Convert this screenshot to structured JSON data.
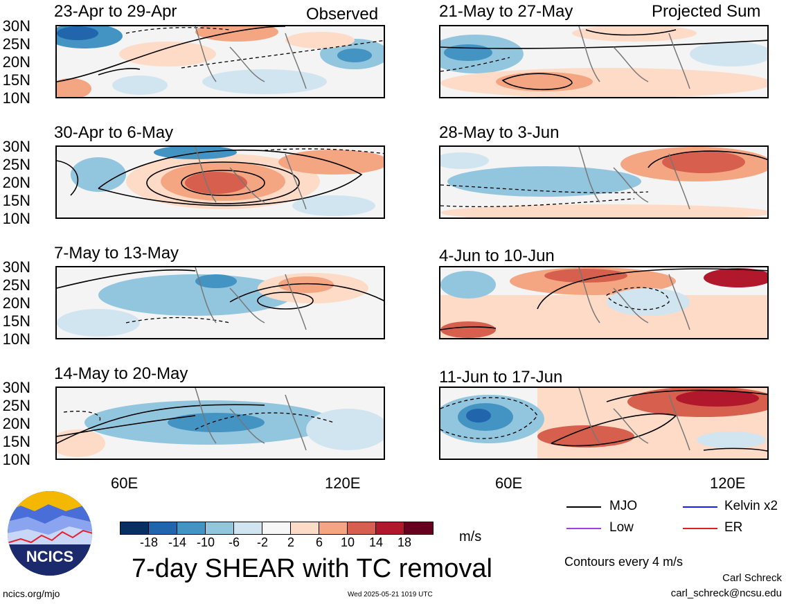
{
  "panels": [
    {
      "id": "p1",
      "title": "23-Apr to 29-Apr",
      "tag": "Observed"
    },
    {
      "id": "p2",
      "title": "21-May to 27-May",
      "tag": "Projected Sum"
    },
    {
      "id": "p3",
      "title": "30-Apr to 6-May",
      "tag": ""
    },
    {
      "id": "p4",
      "title": "28-May to 3-Jun",
      "tag": ""
    },
    {
      "id": "p5",
      "title": "7-May to 13-May",
      "tag": ""
    },
    {
      "id": "p6",
      "title": "4-Jun to 10-Jun",
      "tag": ""
    },
    {
      "id": "p7",
      "title": "14-May to 20-May",
      "tag": ""
    },
    {
      "id": "p8",
      "title": "11-Jun to 17-Jun",
      "tag": ""
    }
  ],
  "lat_labels": [
    "30N",
    "25N",
    "20N",
    "15N",
    "10N"
  ],
  "lon_labels": [
    "60E",
    "120E"
  ],
  "colorbar": {
    "colors": [
      "#053061",
      "#2166ac",
      "#4393c3",
      "#92c5de",
      "#d1e5f0",
      "#f7f7f7",
      "#fddbc7",
      "#f4a582",
      "#d6604d",
      "#b2182b",
      "#67001f"
    ],
    "ticks": [
      "-18",
      "-14",
      "-10",
      "-6",
      "-2",
      "2",
      "6",
      "10",
      "14",
      "18"
    ],
    "units": "m/s"
  },
  "main_title": "7-day SHEAR with TC removal",
  "legend": [
    {
      "label": "MJO",
      "color": "#000000"
    },
    {
      "label": "Kelvin x2",
      "color": "#1a1aff"
    },
    {
      "label": "Low",
      "color": "#a040e0"
    },
    {
      "label": "ER",
      "color": "#e02020"
    }
  ],
  "contours_note": "Contours every 4 m/s",
  "author": "Carl Schreck",
  "email": "carl_schreck@ncsu.edu",
  "url": "ncics.org/mjo",
  "timestamp": "Wed 2025-05-21 1019 UTC",
  "logo_text": "NCICS"
}
